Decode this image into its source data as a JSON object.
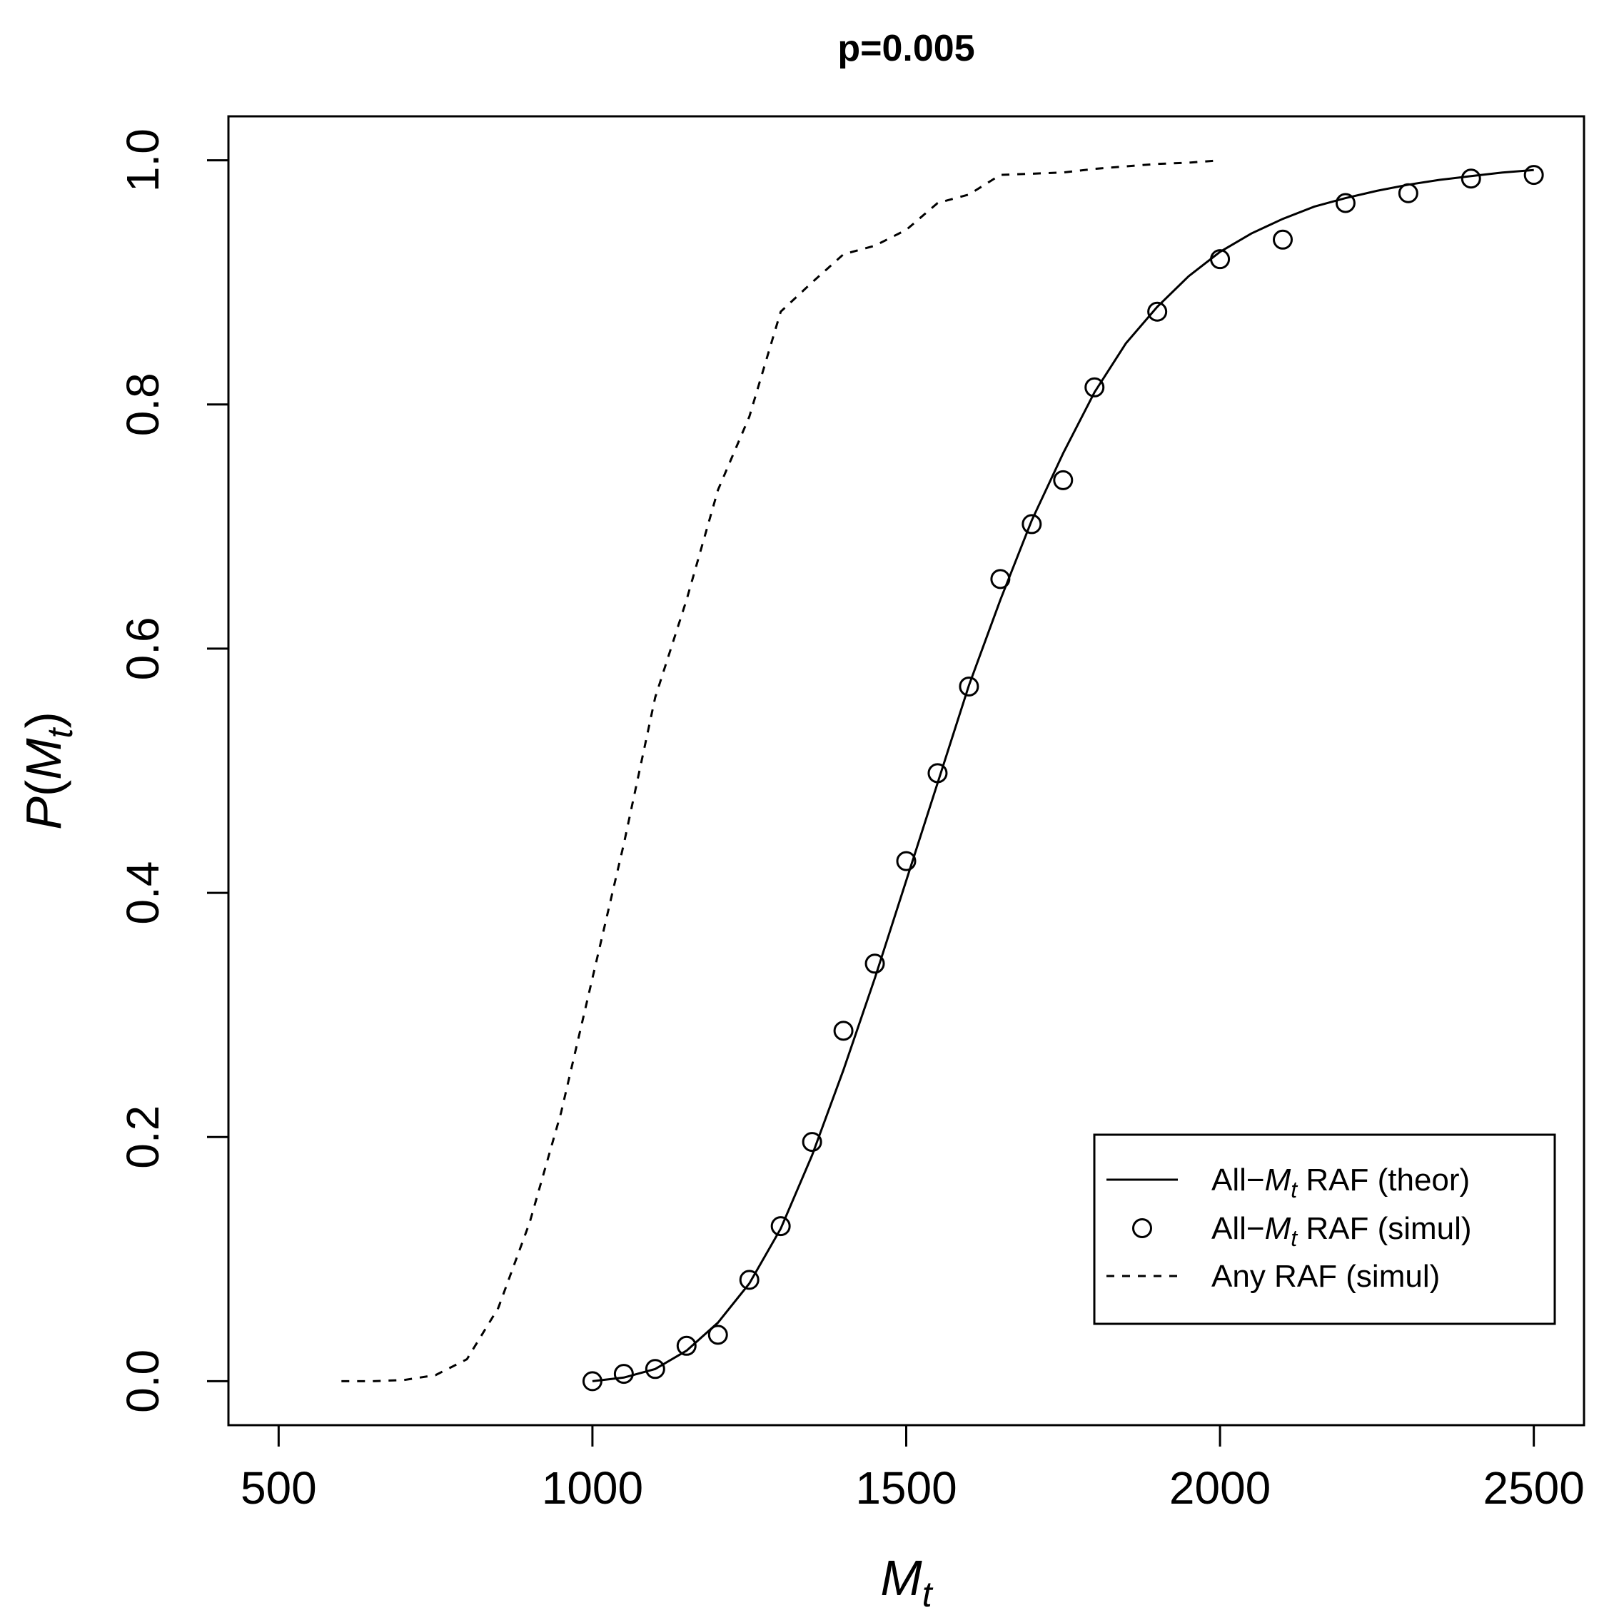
{
  "chart_data": {
    "type": "line",
    "title": "p=0.005",
    "xlabel": {
      "main": "M",
      "sub": "t"
    },
    "ylabel": {
      "prefix": "P(",
      "main": "M",
      "sub": "t",
      "suffix": ")"
    },
    "xlim": [
      420,
      2580
    ],
    "ylim": [
      -0.036,
      1.036
    ],
    "xticks": [
      500,
      1000,
      1500,
      2000,
      2500
    ],
    "xtick_labels": [
      "500",
      "1000",
      "1500",
      "2000",
      "2500"
    ],
    "yticks": [
      0.0,
      0.2,
      0.4,
      0.6,
      0.8,
      1.0
    ],
    "ytick_labels": [
      "0.0",
      "0.2",
      "0.4",
      "0.6",
      "0.8",
      "1.0"
    ],
    "grid": false,
    "legend_position": "bottom-right",
    "legend": [
      {
        "style": "solid",
        "pre": "All−",
        "main": "M",
        "sub": "t",
        "post": " RAF (theor)"
      },
      {
        "style": "circle",
        "pre": "All−",
        "main": "M",
        "sub": "t",
        "post": " RAF (simul)"
      },
      {
        "style": "dashed",
        "pre": "",
        "main": "",
        "sub": "",
        "post": "Any RAF (simul)"
      }
    ],
    "series": [
      {
        "style": "solid",
        "x": [
          1000,
          1050,
          1100,
          1150,
          1200,
          1250,
          1300,
          1350,
          1400,
          1450,
          1500,
          1550,
          1600,
          1650,
          1700,
          1750,
          1800,
          1850,
          1900,
          1950,
          2000,
          2050,
          2100,
          2150,
          2200,
          2250,
          2300,
          2350,
          2400,
          2450,
          2500
        ],
        "y": [
          0.0,
          0.003,
          0.01,
          0.025,
          0.048,
          0.08,
          0.125,
          0.185,
          0.255,
          0.33,
          0.41,
          0.49,
          0.57,
          0.64,
          0.705,
          0.76,
          0.81,
          0.85,
          0.88,
          0.905,
          0.925,
          0.94,
          0.952,
          0.962,
          0.969,
          0.975,
          0.98,
          0.984,
          0.987,
          0.99,
          0.992
        ]
      },
      {
        "style": "circle",
        "x": [
          1000,
          1050,
          1100,
          1150,
          1200,
          1250,
          1300,
          1350,
          1400,
          1450,
          1500,
          1550,
          1600,
          1650,
          1700,
          1750,
          1800,
          1900,
          2000,
          2100,
          2200,
          2300,
          2400,
          2500
        ],
        "y": [
          0.0,
          0.006,
          0.01,
          0.029,
          0.038,
          0.083,
          0.127,
          0.196,
          0.287,
          0.342,
          0.426,
          0.498,
          0.569,
          0.657,
          0.702,
          0.738,
          0.814,
          0.876,
          0.919,
          0.935,
          0.965,
          0.973,
          0.985,
          0.988
        ]
      },
      {
        "style": "dashed",
        "x": [
          600,
          650,
          700,
          750,
          800,
          850,
          900,
          950,
          1000,
          1050,
          1100,
          1150,
          1200,
          1250,
          1300,
          1350,
          1400,
          1450,
          1500,
          1550,
          1600,
          1650,
          1700,
          1750,
          1800,
          1850,
          1900,
          1950,
          2000
        ],
        "y": [
          0.0,
          0.0,
          0.001,
          0.005,
          0.018,
          0.06,
          0.13,
          0.22,
          0.33,
          0.44,
          0.56,
          0.64,
          0.73,
          0.79,
          0.876,
          0.9,
          0.923,
          0.93,
          0.943,
          0.965,
          0.972,
          0.988,
          0.989,
          0.99,
          0.993,
          0.995,
          0.997,
          0.998,
          1.0
        ]
      }
    ]
  }
}
